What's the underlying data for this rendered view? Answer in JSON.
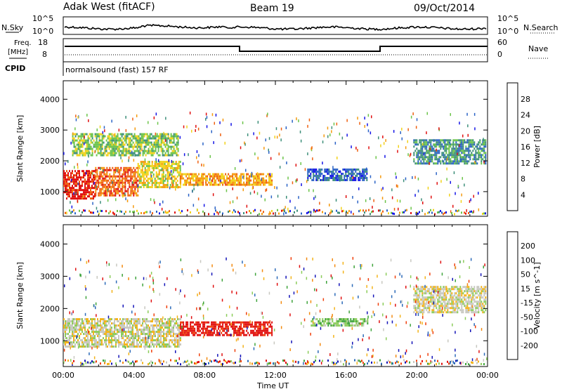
{
  "header": {
    "title": "Adak West (fitACF)",
    "beam": "Beam 19",
    "date": "09/Oct/2014"
  },
  "noise_panel": {
    "label_left": "N.Sky",
    "label_right": "N.Search",
    "ytick_top": "10^5",
    "ytick_bottom": "10^0"
  },
  "freq_panel": {
    "label_left_1": "Freq.",
    "label_left_2": "[MHz]",
    "label_right": "Nave",
    "left_ticks": [
      "18",
      "8"
    ],
    "right_ticks": [
      "60",
      "0"
    ]
  },
  "cpid": {
    "label": "CPID",
    "text": "normalsound (fast) 157 RF"
  },
  "chart_data": [
    {
      "type": "heatmap",
      "title": "",
      "ylabel": "Slant Range [km]",
      "xlabel": "",
      "colorbar_label": "Power [dB]",
      "colorbar_ticks": [
        "4",
        "8",
        "12",
        "16",
        "20",
        "24",
        "28"
      ],
      "colors": [
        "#1414e6",
        "#2b63c6",
        "#3e8f7a",
        "#6cc44a",
        "#f2d21a",
        "#f59a0e",
        "#ef6010",
        "#e01010"
      ],
      "yticks": [
        "1000",
        "2000",
        "3000",
        "4000"
      ],
      "ylim": [
        200,
        4600
      ],
      "xlim": [
        0,
        24
      ],
      "echo_regions": [
        {
          "t0": 0.0,
          "t1": 1.8,
          "r0": 800,
          "r1": 1700,
          "level": 7
        },
        {
          "t0": 1.8,
          "t1": 4.2,
          "r0": 900,
          "r1": 1800,
          "level": 6
        },
        {
          "t0": 4.2,
          "t1": 6.6,
          "r0": 1150,
          "r1": 2000,
          "level": 4
        },
        {
          "t0": 0.5,
          "t1": 6.5,
          "r0": 2200,
          "r1": 2900,
          "level": 3
        },
        {
          "t0": 6.6,
          "t1": 11.8,
          "r0": 1200,
          "r1": 1600,
          "level": 5
        },
        {
          "t0": 13.8,
          "t1": 17.2,
          "r0": 1400,
          "r1": 1750,
          "level": 1
        },
        {
          "t0": 19.8,
          "t1": 23.9,
          "r0": 1900,
          "r1": 2700,
          "level": 2
        }
      ]
    },
    {
      "type": "heatmap",
      "title": "",
      "ylabel": "Slant Range [km]",
      "xlabel": "Time UT",
      "colorbar_label": "Velocity [m s^-1]",
      "colorbar_ticks": [
        "-200",
        "-100",
        "-50",
        "-15",
        "15",
        "50",
        "100",
        "200"
      ],
      "colors": [
        "#e01010",
        "#f0400c",
        "#f38a10",
        "#f3b31a",
        "#c8c8c0",
        "#8ccc5a",
        "#3fa43c",
        "#2c6ab8",
        "#1414b8"
      ],
      "yticks": [
        "1000",
        "2000",
        "3000",
        "4000"
      ],
      "ylim": [
        200,
        4600
      ],
      "xlim": [
        0,
        24
      ],
      "xticks": [
        "00:00",
        "04:00",
        "08:00",
        "12:00",
        "16:00",
        "20:00",
        "00:00"
      ],
      "echo_regions": [
        {
          "t0": 0.0,
          "t1": 6.6,
          "r0": 800,
          "r1": 1700,
          "level": 4
        },
        {
          "t0": 6.6,
          "t1": 11.8,
          "r0": 1150,
          "r1": 1600,
          "level": 0
        },
        {
          "t0": 14.0,
          "t1": 17.2,
          "r0": 1450,
          "r1": 1700,
          "level": 5
        },
        {
          "t0": 19.8,
          "t1": 23.9,
          "r0": 1900,
          "r1": 2700,
          "level": 4
        }
      ]
    }
  ]
}
